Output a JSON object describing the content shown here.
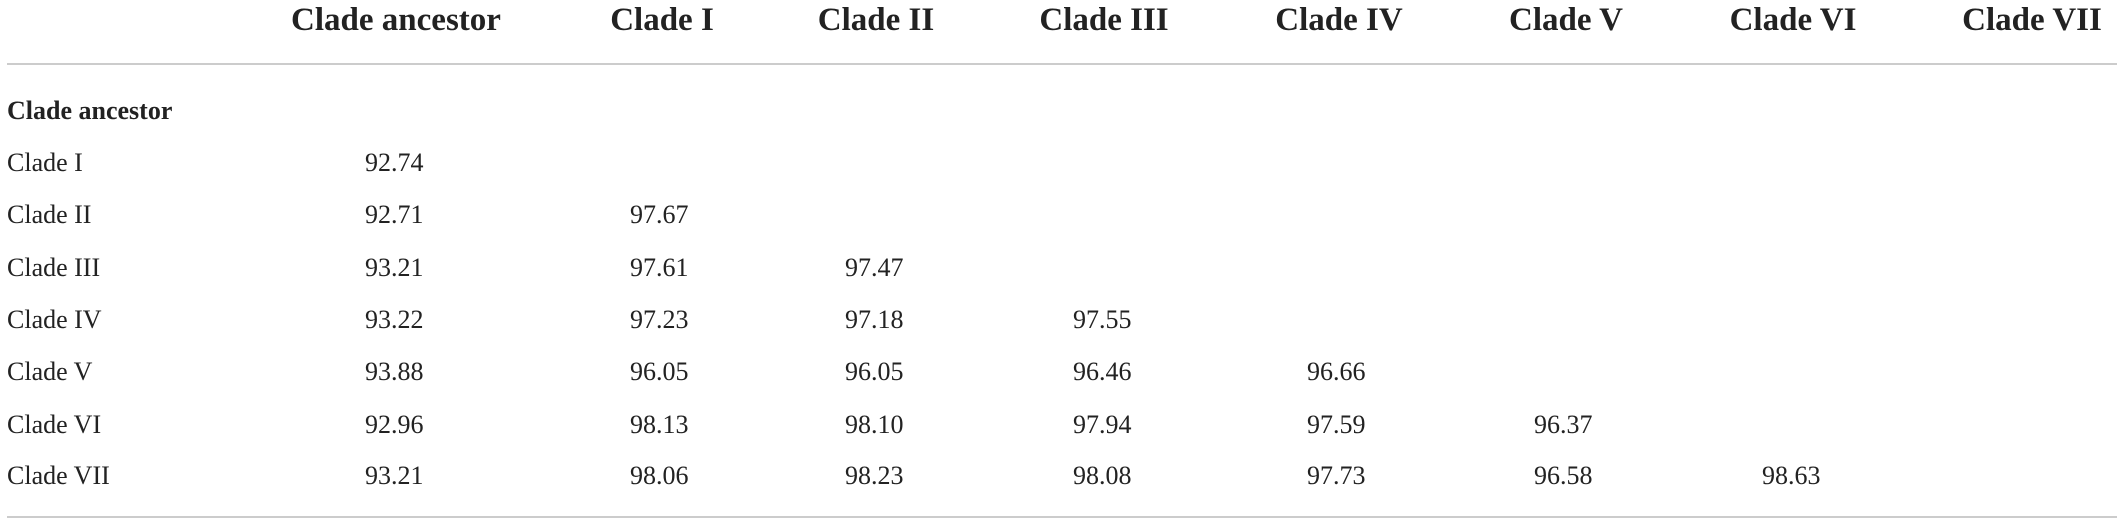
{
  "table": {
    "columns": [
      "Clade ancestor",
      "Clade I",
      "Clade II",
      "Clade III",
      "Clade IV",
      "Clade V",
      "Clade VI",
      "Clade VII"
    ],
    "rows": [
      {
        "label": "Clade ancestor",
        "values": []
      },
      {
        "label": "Clade I",
        "values": [
          "92.74"
        ]
      },
      {
        "label": "Clade II",
        "values": [
          "92.71",
          "97.67"
        ]
      },
      {
        "label": "Clade III",
        "values": [
          "93.21",
          "97.61",
          "97.47"
        ]
      },
      {
        "label": "Clade IV",
        "values": [
          "93.22",
          "97.23",
          "97.18",
          "97.55"
        ]
      },
      {
        "label": "Clade V",
        "values": [
          "93.88",
          "96.05",
          "96.05",
          "96.46",
          "96.66"
        ]
      },
      {
        "label": "Clade VI",
        "values": [
          "92.96",
          "98.13",
          "98.10",
          "97.94",
          "97.59",
          "96.37"
        ]
      },
      {
        "label": "Clade VII",
        "values": [
          "93.21",
          "98.06",
          "98.23",
          "98.08",
          "97.73",
          "96.58",
          "98.63"
        ]
      }
    ]
  }
}
